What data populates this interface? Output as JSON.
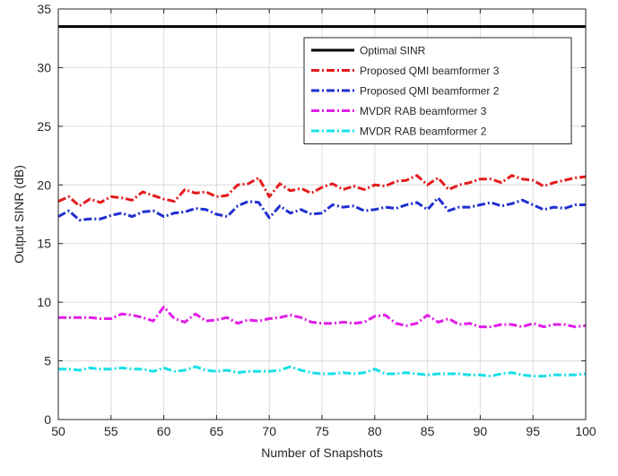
{
  "chart_data": {
    "type": "line",
    "xlabel": "Number of Snapshots",
    "ylabel": "Output SINR (dB)",
    "xlim": [
      50,
      100
    ],
    "ylim": [
      0,
      35
    ],
    "x_ticks": [
      50,
      55,
      60,
      65,
      70,
      75,
      80,
      85,
      90,
      95,
      100
    ],
    "y_ticks": [
      0,
      5,
      10,
      15,
      20,
      25,
      30,
      35
    ],
    "grid": true,
    "legend_position": "top-right",
    "x": [
      50,
      51,
      52,
      53,
      54,
      55,
      56,
      57,
      58,
      59,
      60,
      61,
      62,
      63,
      64,
      65,
      66,
      67,
      68,
      69,
      70,
      71,
      72,
      73,
      74,
      75,
      76,
      77,
      78,
      79,
      80,
      81,
      82,
      83,
      84,
      85,
      86,
      87,
      88,
      89,
      90,
      91,
      92,
      93,
      94,
      95,
      96,
      97,
      98,
      99,
      100
    ],
    "series": [
      {
        "name": "Optimal SINR",
        "color": "#000000",
        "dash": "solid",
        "values": [
          33.5,
          33.5,
          33.5,
          33.5,
          33.5,
          33.5,
          33.5,
          33.5,
          33.5,
          33.5,
          33.5,
          33.5,
          33.5,
          33.5,
          33.5,
          33.5,
          33.5,
          33.5,
          33.5,
          33.5,
          33.5,
          33.5,
          33.5,
          33.5,
          33.5,
          33.5,
          33.5,
          33.5,
          33.5,
          33.5,
          33.5,
          33.5,
          33.5,
          33.5,
          33.5,
          33.5,
          33.5,
          33.5,
          33.5,
          33.5,
          33.5,
          33.5,
          33.5,
          33.5,
          33.5,
          33.5,
          33.5,
          33.5,
          33.5,
          33.5,
          33.5
        ]
      },
      {
        "name": "Proposed QMI beamformer 3",
        "color": "#e41a1c",
        "dash": "dashdot",
        "values": [
          18.6,
          19.0,
          18.2,
          18.8,
          18.5,
          19.0,
          18.9,
          18.7,
          19.4,
          19.1,
          18.8,
          18.6,
          19.6,
          19.3,
          19.4,
          19.0,
          19.1,
          20.0,
          20.1,
          20.6,
          19.0,
          20.1,
          19.5,
          19.7,
          19.3,
          19.8,
          20.1,
          19.6,
          19.9,
          19.6,
          20.0,
          19.9,
          20.3,
          20.4,
          20.8,
          20.0,
          20.6,
          19.6,
          20.0,
          20.2,
          20.5,
          20.5,
          20.2,
          20.8,
          20.5,
          20.4,
          19.9,
          20.2,
          20.4,
          20.6,
          20.7
        ]
      },
      {
        "name": "Proposed QMI beamformer 2",
        "color": "#1f2fd1",
        "dash": "dashdot",
        "values": [
          17.3,
          17.8,
          17.0,
          17.1,
          17.1,
          17.4,
          17.6,
          17.3,
          17.7,
          17.8,
          17.3,
          17.6,
          17.7,
          18.0,
          17.9,
          17.5,
          17.3,
          18.2,
          18.6,
          18.5,
          17.2,
          18.2,
          17.6,
          17.9,
          17.5,
          17.6,
          18.3,
          18.1,
          18.2,
          17.8,
          17.9,
          18.1,
          18.0,
          18.3,
          18.5,
          17.9,
          18.9,
          17.8,
          18.1,
          18.1,
          18.3,
          18.5,
          18.2,
          18.4,
          18.7,
          18.3,
          17.9,
          18.1,
          18.0,
          18.3,
          18.3
        ]
      },
      {
        "name": "MVDR RAB beamformer 3",
        "color": "#e11ee8",
        "dash": "dashdot",
        "values": [
          8.7,
          8.7,
          8.7,
          8.7,
          8.6,
          8.6,
          9.0,
          8.9,
          8.7,
          8.4,
          9.6,
          8.6,
          8.3,
          9.0,
          8.4,
          8.5,
          8.7,
          8.2,
          8.5,
          8.4,
          8.6,
          8.7,
          8.9,
          8.7,
          8.3,
          8.2,
          8.2,
          8.3,
          8.2,
          8.3,
          8.8,
          8.9,
          8.2,
          8.0,
          8.2,
          8.9,
          8.3,
          8.6,
          8.1,
          8.2,
          7.9,
          7.9,
          8.1,
          8.1,
          7.9,
          8.2,
          7.9,
          8.1,
          8.1,
          7.9,
          8.0
        ]
      },
      {
        "name": "MVDR RAB beamformer 2",
        "color": "#18e0e6",
        "dash": "dashdot",
        "values": [
          4.3,
          4.3,
          4.2,
          4.4,
          4.3,
          4.3,
          4.4,
          4.3,
          4.3,
          4.1,
          4.4,
          4.1,
          4.2,
          4.5,
          4.2,
          4.1,
          4.2,
          4.0,
          4.1,
          4.1,
          4.1,
          4.2,
          4.5,
          4.2,
          4.0,
          3.9,
          3.9,
          4.0,
          3.9,
          4.0,
          4.3,
          3.9,
          3.9,
          4.0,
          3.9,
          3.8,
          3.9,
          3.9,
          3.9,
          3.8,
          3.8,
          3.7,
          3.9,
          4.0,
          3.8,
          3.7,
          3.7,
          3.8,
          3.8,
          3.8,
          3.9
        ]
      }
    ]
  }
}
